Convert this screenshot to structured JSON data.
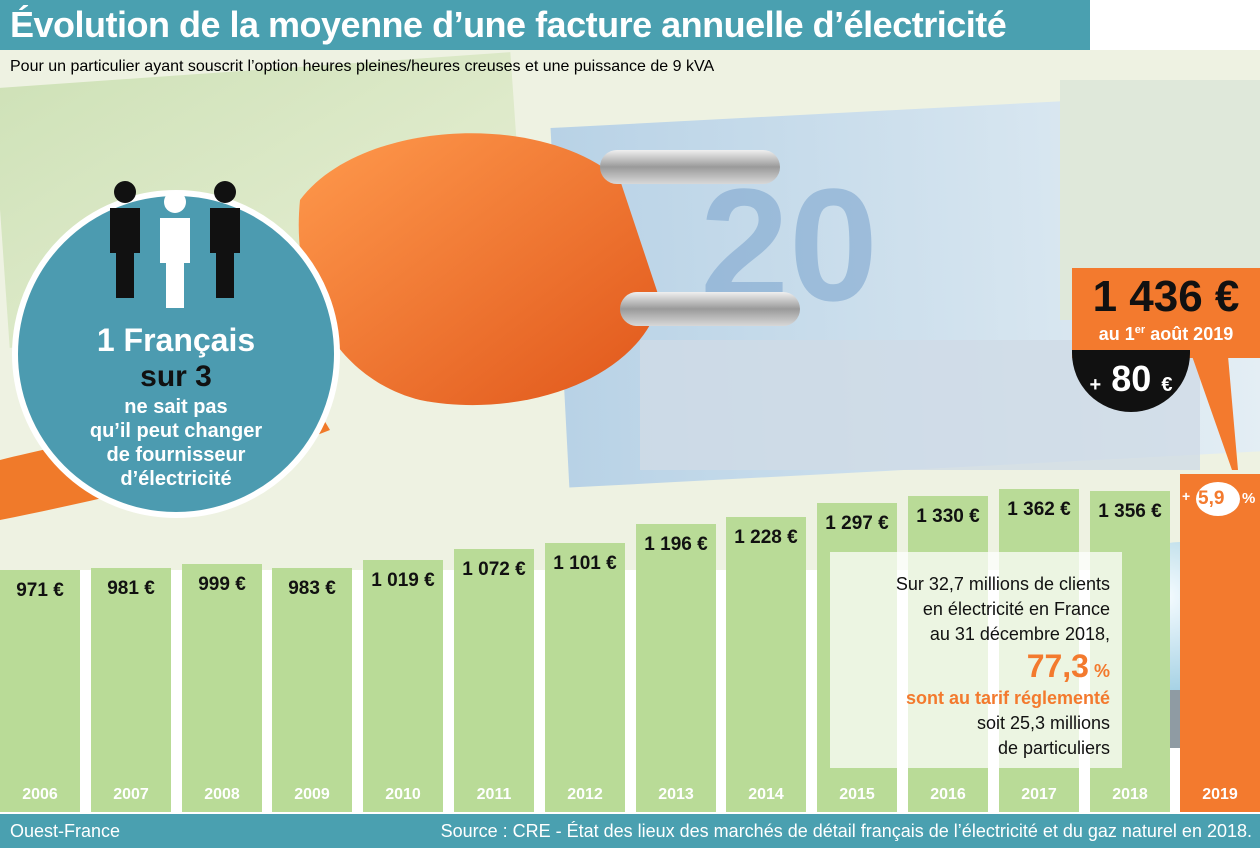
{
  "header": {
    "title": "Évolution de la moyenne d’une facture annuelle d’électricité",
    "subtitle": "Pour un particulier ayant souscrit l’option heures pleines/heures creuses et une puissance de 9 kVA"
  },
  "chart_data": {
    "type": "bar",
    "title": "Évolution de la moyenne d’une facture annuelle d’électricité",
    "unit": "€",
    "categories": [
      "2006",
      "2007",
      "2008",
      "2009",
      "2010",
      "2011",
      "2012",
      "2013",
      "2014",
      "2015",
      "2016",
      "2017",
      "2018",
      "2019"
    ],
    "values": [
      971,
      981,
      999,
      983,
      1019,
      1072,
      1101,
      1196,
      1228,
      1297,
      1330,
      1362,
      1356,
      1436
    ],
    "value_labels": [
      "971 €",
      "981 €",
      "999 €",
      "983 €",
      "1 019 €",
      "1 072 €",
      "1 101 €",
      "1 196 €",
      "1 228 €",
      "1 297 €",
      "1 330 €",
      "1 362 €",
      "1 356 €",
      ""
    ],
    "colors": {
      "bar": "#b9db97",
      "highlight": "#f37a2e"
    }
  },
  "highlight": {
    "price": "1 436 €",
    "date_prefix": "au 1",
    "date_sup": "er",
    "date_suffix": " août 2019",
    "delta_prefix": "+",
    "delta_value": "80",
    "delta_unit": "€",
    "growth_prefix": "+",
    "growth_value": "5,9",
    "growth_unit": "%"
  },
  "circle_info": {
    "line1": "1 Français",
    "line2": "sur 3",
    "line3": "ne sait pas",
    "line4": "qu’il peut changer",
    "line5": "de fournisseur",
    "line6": "d’électricité"
  },
  "info_box": {
    "line1": "Sur 32,7 millions de clients",
    "line2": "en électricité en France",
    "line3": "au 31 décembre 2018,",
    "big_value": "77,3",
    "big_unit": "%",
    "line4": "sont au tarif réglementé",
    "line5": "soit 25,3 millions",
    "line6": "de particuliers"
  },
  "footer": {
    "brand": "Ouest-France",
    "source": "Source : CRE - État des lieux des marchés de détail français de l’électricité et du gaz naturel en 2018."
  }
}
